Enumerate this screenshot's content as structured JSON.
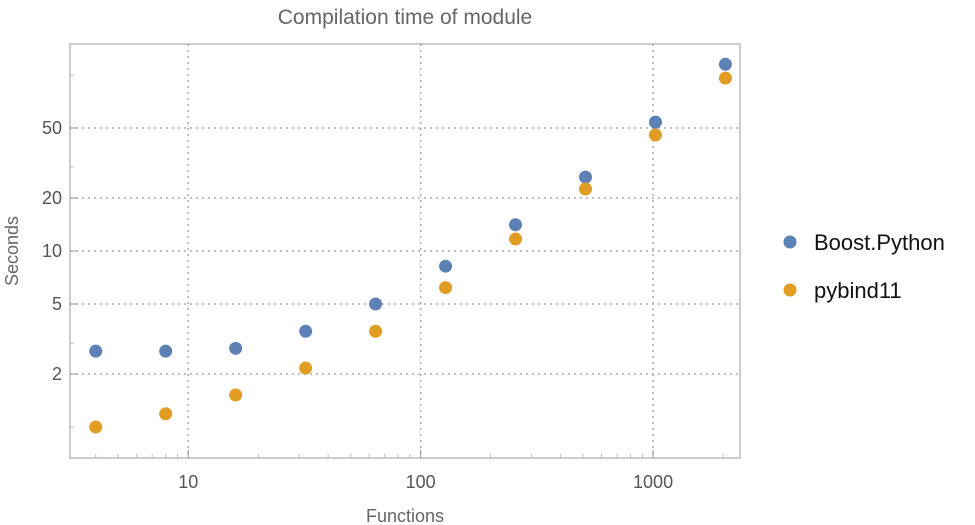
{
  "chart_data": {
    "type": "scatter",
    "title": "Compilation time of module",
    "xlabel": "Functions",
    "ylabel": "Seconds",
    "x_scale": "log",
    "y_scale": "log",
    "xlim": [
      3.1,
      2366
    ],
    "ylim": [
      0.667,
      150
    ],
    "x_ticks": [
      10,
      100,
      1000
    ],
    "x_tick_labels": [
      "10",
      "100",
      "1000"
    ],
    "y_ticks": [
      2,
      5,
      10,
      20,
      50
    ],
    "y_tick_labels": [
      "2",
      "5",
      "10",
      "20",
      "50"
    ],
    "grid": true,
    "legend_position": "right",
    "x": [
      4,
      8,
      16,
      32,
      64,
      128,
      256,
      512,
      1024,
      2048
    ],
    "series": [
      {
        "name": "Boost.Python",
        "color": "#5e81b5",
        "values": [
          2.7,
          2.7,
          2.8,
          3.5,
          5.0,
          8.2,
          14.1,
          26.3,
          54,
          115
        ]
      },
      {
        "name": "pybind11",
        "color": "#e19c24",
        "values": [
          1.0,
          1.19,
          1.52,
          2.16,
          3.5,
          6.2,
          11.7,
          22.5,
          45.6,
          96
        ]
      }
    ]
  }
}
